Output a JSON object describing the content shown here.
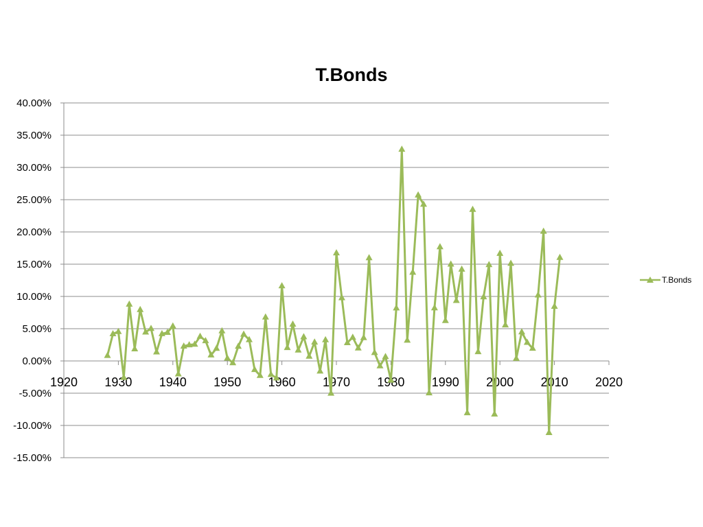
{
  "chart_data": {
    "type": "line",
    "title": "T.Bonds",
    "xlabel": "",
    "ylabel": "",
    "xlim": [
      1920,
      2020
    ],
    "ylim": [
      -15,
      40
    ],
    "x_ticks": [
      1920,
      1930,
      1940,
      1950,
      1960,
      1970,
      1980,
      1990,
      2000,
      2010,
      2020
    ],
    "x_tick_labels": [
      "1920",
      "1930",
      "1940",
      "1950",
      "1960",
      "1970",
      "1980",
      "1990",
      "2000",
      "2010",
      "2020"
    ],
    "y_ticks": [
      40,
      35,
      30,
      25,
      20,
      15,
      10,
      5,
      0,
      -5,
      -10,
      -15
    ],
    "y_tick_labels": [
      "40.00%",
      "35.00%",
      "30.00%",
      "25.00%",
      "20.00%",
      "15.00%",
      "10.00%",
      "5.00%",
      "0.00%",
      "-5.00%",
      "-10.00%",
      "-15.00%"
    ],
    "grid": true,
    "legend_position": "right",
    "series": [
      {
        "name": "T.Bonds",
        "color": "#9bbb59",
        "marker": "triangle",
        "x": [
          1928,
          1929,
          1930,
          1931,
          1932,
          1933,
          1934,
          1935,
          1936,
          1937,
          1938,
          1939,
          1940,
          1941,
          1942,
          1943,
          1944,
          1945,
          1946,
          1947,
          1948,
          1949,
          1950,
          1951,
          1952,
          1953,
          1954,
          1955,
          1956,
          1957,
          1958,
          1959,
          1960,
          1961,
          1962,
          1963,
          1964,
          1965,
          1966,
          1967,
          1968,
          1969,
          1970,
          1971,
          1972,
          1973,
          1974,
          1975,
          1976,
          1977,
          1978,
          1979,
          1980,
          1981,
          1982,
          1983,
          1984,
          1985,
          1986,
          1987,
          1988,
          1989,
          1990,
          1991,
          1992,
          1993,
          1994,
          1995,
          1996,
          1997,
          1998,
          1999,
          2000,
          2001,
          2002,
          2003,
          2004,
          2005,
          2006,
          2007,
          2008,
          2009,
          2010,
          2011
        ],
        "y": [
          0.84,
          4.2,
          4.54,
          -2.56,
          8.79,
          1.86,
          7.96,
          4.47,
          5.02,
          1.38,
          4.21,
          4.41,
          5.4,
          -2.02,
          2.29,
          2.49,
          2.58,
          3.8,
          3.13,
          0.92,
          1.95,
          4.66,
          0.43,
          -0.3,
          2.27,
          4.14,
          3.29,
          -1.34,
          -2.26,
          6.8,
          -2.1,
          -2.65,
          11.64,
          2.06,
          5.69,
          1.68,
          3.73,
          0.72,
          2.91,
          -1.58,
          3.27,
          -5.01,
          16.75,
          9.79,
          2.82,
          3.66,
          1.99,
          3.61,
          15.98,
          1.29,
          -0.78,
          0.67,
          -2.99,
          8.2,
          32.81,
          3.2,
          13.73,
          25.71,
          24.28,
          -4.96,
          8.22,
          17.69,
          6.24,
          15.0,
          9.36,
          14.21,
          -8.04,
          23.48,
          1.43,
          9.94,
          14.92,
          -8.25,
          16.66,
          5.57,
          15.12,
          0.38,
          4.49,
          2.87,
          1.96,
          10.21,
          20.1,
          -11.12,
          8.46,
          16.04
        ]
      }
    ]
  }
}
